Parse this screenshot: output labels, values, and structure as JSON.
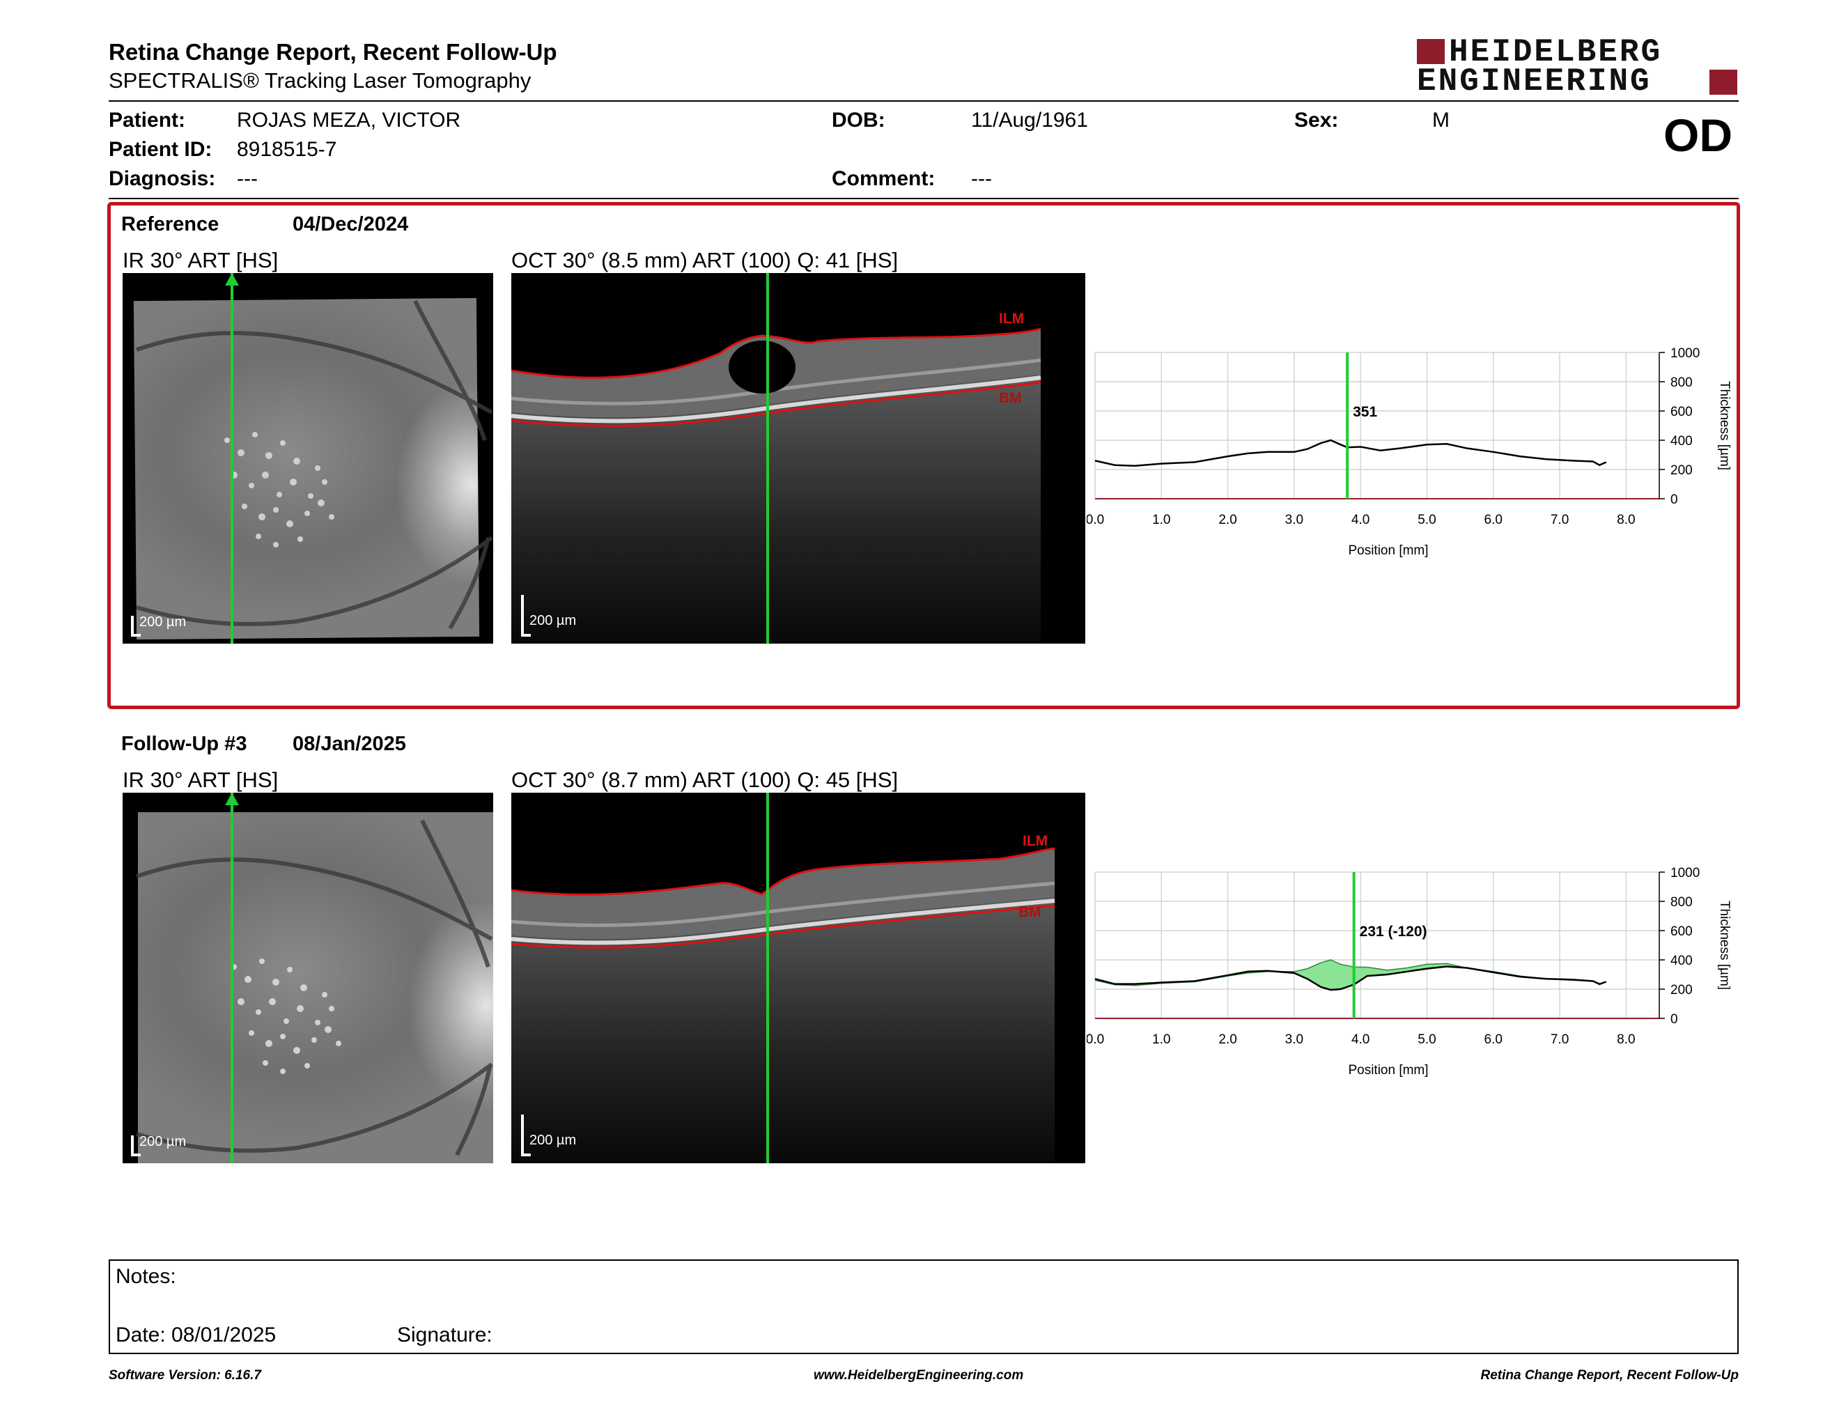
{
  "header": {
    "title": "Retina Change Report, Recent Follow-Up",
    "subtitle": "SPECTRALIS® Tracking Laser Tomography",
    "logo_line1": "HEIDELBERG",
    "logo_line2": "ENGINEERING"
  },
  "patient": {
    "patient_label": "Patient:",
    "patient_value": "ROJAS MEZA, VICTOR",
    "id_label": "Patient ID:",
    "id_value": "8918515-7",
    "diagnosis_label": "Diagnosis:",
    "diagnosis_value": "---",
    "dob_label": "DOB:",
    "dob_value": "11/Aug/1961",
    "comment_label": "Comment:",
    "comment_value": "---",
    "sex_label": "Sex:",
    "sex_value": "M",
    "eye": "OD"
  },
  "reference": {
    "label": "Reference",
    "date": "04/Dec/2024",
    "ir_caption": "IR 30° ART [HS]",
    "oct_caption": "OCT 30° (8.5 mm) ART (100) Q: 41 [HS]",
    "scale_label": "200 µm",
    "ilm_label": "ILM",
    "bm_label": "BM"
  },
  "followup": {
    "label": "Follow-Up #3",
    "date": "08/Jan/2025",
    "ir_caption": "IR 30° ART [HS]",
    "oct_caption": "OCT 30° (8.7 mm) ART (100) Q: 45 [HS]",
    "scale_label": "200 µm",
    "ilm_label": "ILM",
    "bm_label": "BM"
  },
  "chart_data": [
    {
      "type": "line",
      "xlabel": "Position [mm]",
      "ylabel": "Thickness [µm]",
      "xlim": [
        0,
        8.5
      ],
      "ylim": [
        0,
        1000
      ],
      "x_ticks": [
        "0.0",
        "1.0",
        "2.0",
        "3.0",
        "4.0",
        "5.0",
        "6.0",
        "7.0",
        "8.0"
      ],
      "y_ticks": [
        "0",
        "200",
        "400",
        "600",
        "800",
        "1000"
      ],
      "grid": true,
      "cursor_x": 3.8,
      "cursor_label": "351",
      "series": [
        {
          "x": [
            0.0,
            0.3,
            0.6,
            1.0,
            1.5,
            2.0,
            2.3,
            2.6,
            3.0,
            3.2,
            3.4,
            3.55,
            3.7,
            3.8,
            4.0,
            4.3,
            4.6,
            5.0,
            5.3,
            5.6,
            6.0,
            6.4,
            6.8,
            7.2,
            7.5,
            7.6,
            7.7
          ],
          "y": [
            260,
            230,
            225,
            240,
            250,
            290,
            310,
            320,
            320,
            340,
            380,
            400,
            370,
            351,
            355,
            330,
            345,
            370,
            375,
            345,
            320,
            290,
            270,
            260,
            255,
            230,
            250
          ]
        }
      ]
    },
    {
      "type": "line",
      "xlabel": "Position [mm]",
      "ylabel": "Thickness [µm]",
      "xlim": [
        0,
        8.5
      ],
      "ylim": [
        0,
        1000
      ],
      "x_ticks": [
        "0.0",
        "1.0",
        "2.0",
        "3.0",
        "4.0",
        "5.0",
        "6.0",
        "7.0",
        "8.0"
      ],
      "y_ticks": [
        "0",
        "200",
        "400",
        "600",
        "800",
        "1000"
      ],
      "grid": true,
      "cursor_x": 3.9,
      "cursor_label": "231 (-120)",
      "series": [
        {
          "x": [
            0.0,
            0.3,
            0.6,
            1.0,
            1.5,
            2.0,
            2.3,
            2.6,
            3.0,
            3.2,
            3.4,
            3.55,
            3.7,
            3.9,
            4.1,
            4.4,
            4.7,
            5.0,
            5.3,
            5.6,
            6.0,
            6.4,
            6.8,
            7.2,
            7.5,
            7.6,
            7.7
          ],
          "y": [
            270,
            235,
            235,
            245,
            255,
            295,
            320,
            325,
            310,
            270,
            215,
            195,
            200,
            231,
            290,
            300,
            320,
            340,
            355,
            345,
            315,
            285,
            270,
            265,
            255,
            235,
            250
          ]
        }
      ],
      "reference_series": {
        "x": [
          0.0,
          0.3,
          0.6,
          1.0,
          1.5,
          2.0,
          2.3,
          2.6,
          3.0,
          3.2,
          3.4,
          3.55,
          3.7,
          3.9,
          4.1,
          4.4,
          4.7,
          5.0,
          5.3,
          5.6,
          6.0,
          6.4,
          6.8,
          7.2,
          7.5,
          7.6,
          7.7
        ],
        "y": [
          260,
          230,
          225,
          240,
          250,
          290,
          310,
          320,
          320,
          340,
          380,
          400,
          370,
          351,
          350,
          330,
          345,
          370,
          375,
          345,
          320,
          290,
          270,
          260,
          255,
          230,
          250
        ]
      },
      "fill_color": "#7ee08a"
    }
  ],
  "notes": {
    "notes_label": "Notes:",
    "date_label": "Date: 08/01/2025",
    "signature_label": "Signature:"
  },
  "footer": {
    "software": "Software Version: 6.16.7",
    "url": "www.HeidelbergEngineering.com",
    "report": "Retina Change Report, Recent Follow-Up"
  },
  "colors": {
    "accent": "#c0141f",
    "brand": "#8f1c2a",
    "cursor": "#22cc33",
    "ilm": "#e01010"
  }
}
